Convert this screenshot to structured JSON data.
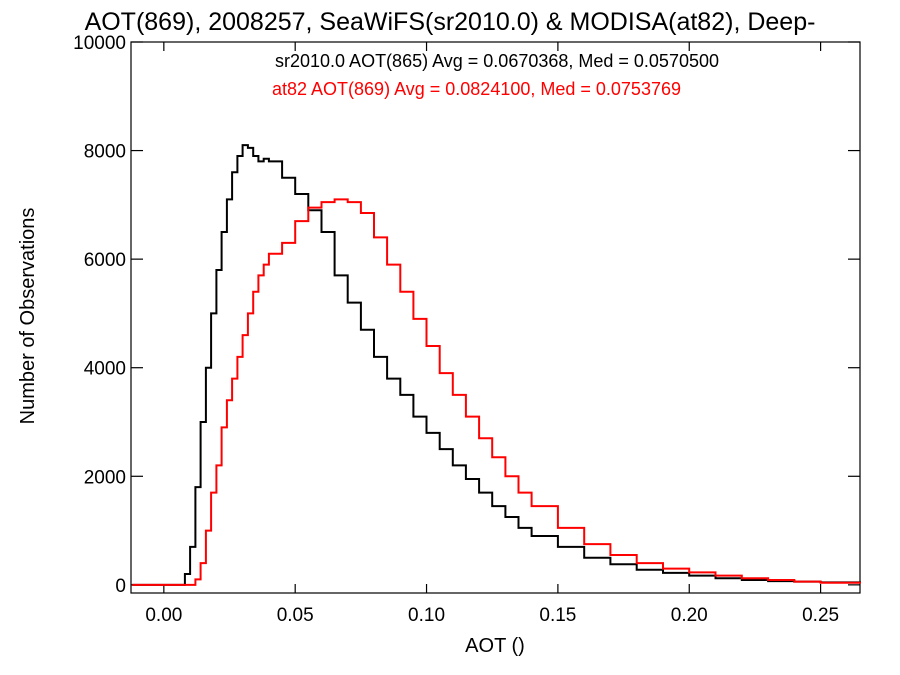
{
  "chart_data": {
    "type": "line",
    "title": "AOT(869), 2008257, SeaWiFS(sr2010.0) & MODISA(at82), Deep-",
    "xlabel": "AOT ()",
    "ylabel": "Number of Observations",
    "xlim": [
      -0.0125,
      0.265
    ],
    "ylim": [
      -150,
      10000
    ],
    "xticks": [
      0.0,
      0.05,
      0.1,
      0.15,
      0.2,
      0.25
    ],
    "xtick_labels": [
      "0.00",
      "0.05",
      "0.10",
      "0.15",
      "0.20",
      "0.25"
    ],
    "yticks": [
      0,
      2000,
      4000,
      6000,
      8000,
      10000
    ],
    "ytick_labels": [
      "0",
      "2000",
      "4000",
      "6000",
      "8000",
      "10000"
    ],
    "grid": false,
    "annotations": [
      {
        "text": "sr2010.0 AOT(865) Avg = 0.0670368, Med = 0.0570500",
        "color": "#000000"
      },
      {
        "text": "at82 AOT(869) Avg = 0.0824100, Med = 0.0753769",
        "color": "#ff0000"
      }
    ],
    "series": [
      {
        "color": "#000000",
        "x": [
          -0.012,
          0.0,
          0.004,
          0.006,
          0.008,
          0.01,
          0.012,
          0.014,
          0.016,
          0.018,
          0.02,
          0.022,
          0.024,
          0.026,
          0.028,
          0.03,
          0.032,
          0.034,
          0.036,
          0.038,
          0.04,
          0.045,
          0.05,
          0.055,
          0.06,
          0.065,
          0.07,
          0.075,
          0.08,
          0.085,
          0.09,
          0.095,
          0.1,
          0.105,
          0.11,
          0.115,
          0.12,
          0.125,
          0.13,
          0.135,
          0.14,
          0.15,
          0.16,
          0.17,
          0.18,
          0.19,
          0.2,
          0.21,
          0.22,
          0.23,
          0.24,
          0.25,
          0.265
        ],
        "y": [
          0,
          0,
          0,
          0,
          200,
          700,
          1800,
          3000,
          4000,
          5000,
          5800,
          6500,
          7100,
          7600,
          7900,
          8100,
          8050,
          7900,
          7800,
          7850,
          7800,
          7500,
          7200,
          6900,
          6500,
          5700,
          5200,
          4700,
          4200,
          3800,
          3500,
          3100,
          2800,
          2500,
          2200,
          1950,
          1700,
          1450,
          1250,
          1050,
          900,
          700,
          500,
          380,
          280,
          220,
          170,
          120,
          90,
          70,
          60,
          45,
          30
        ]
      },
      {
        "color": "#ff0000",
        "x": [
          -0.012,
          0.0,
          0.01,
          0.012,
          0.014,
          0.016,
          0.018,
          0.02,
          0.022,
          0.024,
          0.026,
          0.028,
          0.03,
          0.032,
          0.034,
          0.036,
          0.038,
          0.04,
          0.045,
          0.05,
          0.055,
          0.06,
          0.065,
          0.07,
          0.075,
          0.08,
          0.085,
          0.09,
          0.095,
          0.1,
          0.105,
          0.11,
          0.115,
          0.12,
          0.125,
          0.13,
          0.135,
          0.14,
          0.15,
          0.16,
          0.17,
          0.18,
          0.19,
          0.2,
          0.21,
          0.22,
          0.23,
          0.24,
          0.25,
          0.265
        ],
        "y": [
          0,
          0,
          0,
          100,
          400,
          1000,
          1700,
          2200,
          2900,
          3400,
          3800,
          4200,
          4600,
          5000,
          5400,
          5700,
          5900,
          6100,
          6300,
          6700,
          6950,
          7050,
          7100,
          7050,
          6850,
          6400,
          5900,
          5400,
          4900,
          4400,
          3900,
          3500,
          3100,
          2700,
          2350,
          2000,
          1700,
          1450,
          1050,
          750,
          550,
          400,
          300,
          230,
          170,
          120,
          90,
          60,
          40,
          25
        ]
      }
    ]
  }
}
